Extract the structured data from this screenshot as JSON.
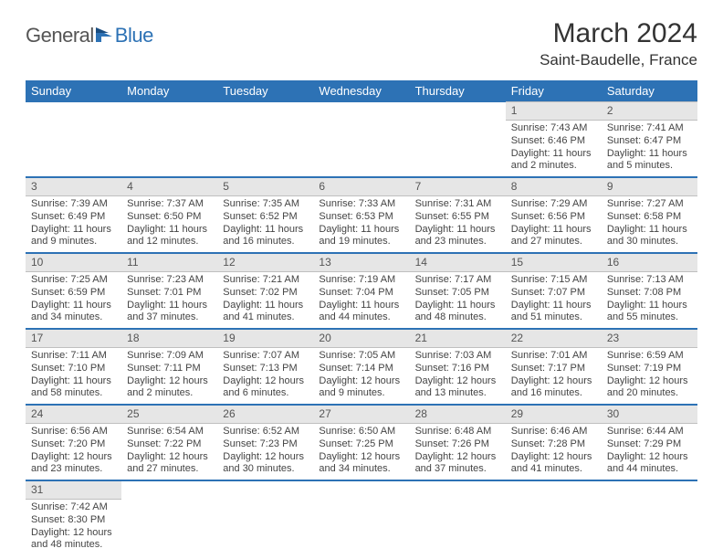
{
  "brand": {
    "part1": "General",
    "part2": "Blue"
  },
  "title": "March 2024",
  "location": "Saint-Baudelle, France",
  "colors": {
    "header_bg": "#2d72b5",
    "header_text": "#ffffff",
    "daynum_bg": "#e6e6e6",
    "row_divider": "#2d72b5"
  },
  "days_of_week": [
    "Sunday",
    "Monday",
    "Tuesday",
    "Wednesday",
    "Thursday",
    "Friday",
    "Saturday"
  ],
  "weeks": [
    [
      null,
      null,
      null,
      null,
      null,
      {
        "n": "1",
        "sr": "Sunrise: 7:43 AM",
        "ss": "Sunset: 6:46 PM",
        "d1": "Daylight: 11 hours",
        "d2": "and 2 minutes."
      },
      {
        "n": "2",
        "sr": "Sunrise: 7:41 AM",
        "ss": "Sunset: 6:47 PM",
        "d1": "Daylight: 11 hours",
        "d2": "and 5 minutes."
      }
    ],
    [
      {
        "n": "3",
        "sr": "Sunrise: 7:39 AM",
        "ss": "Sunset: 6:49 PM",
        "d1": "Daylight: 11 hours",
        "d2": "and 9 minutes."
      },
      {
        "n": "4",
        "sr": "Sunrise: 7:37 AM",
        "ss": "Sunset: 6:50 PM",
        "d1": "Daylight: 11 hours",
        "d2": "and 12 minutes."
      },
      {
        "n": "5",
        "sr": "Sunrise: 7:35 AM",
        "ss": "Sunset: 6:52 PM",
        "d1": "Daylight: 11 hours",
        "d2": "and 16 minutes."
      },
      {
        "n": "6",
        "sr": "Sunrise: 7:33 AM",
        "ss": "Sunset: 6:53 PM",
        "d1": "Daylight: 11 hours",
        "d2": "and 19 minutes."
      },
      {
        "n": "7",
        "sr": "Sunrise: 7:31 AM",
        "ss": "Sunset: 6:55 PM",
        "d1": "Daylight: 11 hours",
        "d2": "and 23 minutes."
      },
      {
        "n": "8",
        "sr": "Sunrise: 7:29 AM",
        "ss": "Sunset: 6:56 PM",
        "d1": "Daylight: 11 hours",
        "d2": "and 27 minutes."
      },
      {
        "n": "9",
        "sr": "Sunrise: 7:27 AM",
        "ss": "Sunset: 6:58 PM",
        "d1": "Daylight: 11 hours",
        "d2": "and 30 minutes."
      }
    ],
    [
      {
        "n": "10",
        "sr": "Sunrise: 7:25 AM",
        "ss": "Sunset: 6:59 PM",
        "d1": "Daylight: 11 hours",
        "d2": "and 34 minutes."
      },
      {
        "n": "11",
        "sr": "Sunrise: 7:23 AM",
        "ss": "Sunset: 7:01 PM",
        "d1": "Daylight: 11 hours",
        "d2": "and 37 minutes."
      },
      {
        "n": "12",
        "sr": "Sunrise: 7:21 AM",
        "ss": "Sunset: 7:02 PM",
        "d1": "Daylight: 11 hours",
        "d2": "and 41 minutes."
      },
      {
        "n": "13",
        "sr": "Sunrise: 7:19 AM",
        "ss": "Sunset: 7:04 PM",
        "d1": "Daylight: 11 hours",
        "d2": "and 44 minutes."
      },
      {
        "n": "14",
        "sr": "Sunrise: 7:17 AM",
        "ss": "Sunset: 7:05 PM",
        "d1": "Daylight: 11 hours",
        "d2": "and 48 minutes."
      },
      {
        "n": "15",
        "sr": "Sunrise: 7:15 AM",
        "ss": "Sunset: 7:07 PM",
        "d1": "Daylight: 11 hours",
        "d2": "and 51 minutes."
      },
      {
        "n": "16",
        "sr": "Sunrise: 7:13 AM",
        "ss": "Sunset: 7:08 PM",
        "d1": "Daylight: 11 hours",
        "d2": "and 55 minutes."
      }
    ],
    [
      {
        "n": "17",
        "sr": "Sunrise: 7:11 AM",
        "ss": "Sunset: 7:10 PM",
        "d1": "Daylight: 11 hours",
        "d2": "and 58 minutes."
      },
      {
        "n": "18",
        "sr": "Sunrise: 7:09 AM",
        "ss": "Sunset: 7:11 PM",
        "d1": "Daylight: 12 hours",
        "d2": "and 2 minutes."
      },
      {
        "n": "19",
        "sr": "Sunrise: 7:07 AM",
        "ss": "Sunset: 7:13 PM",
        "d1": "Daylight: 12 hours",
        "d2": "and 6 minutes."
      },
      {
        "n": "20",
        "sr": "Sunrise: 7:05 AM",
        "ss": "Sunset: 7:14 PM",
        "d1": "Daylight: 12 hours",
        "d2": "and 9 minutes."
      },
      {
        "n": "21",
        "sr": "Sunrise: 7:03 AM",
        "ss": "Sunset: 7:16 PM",
        "d1": "Daylight: 12 hours",
        "d2": "and 13 minutes."
      },
      {
        "n": "22",
        "sr": "Sunrise: 7:01 AM",
        "ss": "Sunset: 7:17 PM",
        "d1": "Daylight: 12 hours",
        "d2": "and 16 minutes."
      },
      {
        "n": "23",
        "sr": "Sunrise: 6:59 AM",
        "ss": "Sunset: 7:19 PM",
        "d1": "Daylight: 12 hours",
        "d2": "and 20 minutes."
      }
    ],
    [
      {
        "n": "24",
        "sr": "Sunrise: 6:56 AM",
        "ss": "Sunset: 7:20 PM",
        "d1": "Daylight: 12 hours",
        "d2": "and 23 minutes."
      },
      {
        "n": "25",
        "sr": "Sunrise: 6:54 AM",
        "ss": "Sunset: 7:22 PM",
        "d1": "Daylight: 12 hours",
        "d2": "and 27 minutes."
      },
      {
        "n": "26",
        "sr": "Sunrise: 6:52 AM",
        "ss": "Sunset: 7:23 PM",
        "d1": "Daylight: 12 hours",
        "d2": "and 30 minutes."
      },
      {
        "n": "27",
        "sr": "Sunrise: 6:50 AM",
        "ss": "Sunset: 7:25 PM",
        "d1": "Daylight: 12 hours",
        "d2": "and 34 minutes."
      },
      {
        "n": "28",
        "sr": "Sunrise: 6:48 AM",
        "ss": "Sunset: 7:26 PM",
        "d1": "Daylight: 12 hours",
        "d2": "and 37 minutes."
      },
      {
        "n": "29",
        "sr": "Sunrise: 6:46 AM",
        "ss": "Sunset: 7:28 PM",
        "d1": "Daylight: 12 hours",
        "d2": "and 41 minutes."
      },
      {
        "n": "30",
        "sr": "Sunrise: 6:44 AM",
        "ss": "Sunset: 7:29 PM",
        "d1": "Daylight: 12 hours",
        "d2": "and 44 minutes."
      }
    ],
    [
      {
        "n": "31",
        "sr": "Sunrise: 7:42 AM",
        "ss": "Sunset: 8:30 PM",
        "d1": "Daylight: 12 hours",
        "d2": "and 48 minutes."
      },
      null,
      null,
      null,
      null,
      null,
      null
    ]
  ]
}
